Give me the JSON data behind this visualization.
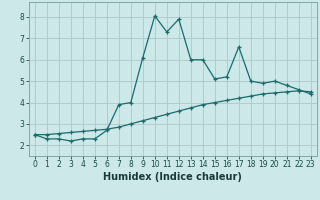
{
  "xlabel": "Humidex (Indice chaleur)",
  "xlim": [
    -0.5,
    23.5
  ],
  "ylim": [
    1.5,
    8.7
  ],
  "yticks": [
    2,
    3,
    4,
    5,
    6,
    7,
    8
  ],
  "xticks": [
    0,
    1,
    2,
    3,
    4,
    5,
    6,
    7,
    8,
    9,
    10,
    11,
    12,
    13,
    14,
    15,
    16,
    17,
    18,
    19,
    20,
    21,
    22,
    23
  ],
  "bg_color": "#cce8e8",
  "line_color": "#1a6b6b",
  "grid_color": "#b0cccc",
  "line1_x": [
    0,
    1,
    2,
    3,
    4,
    5,
    6,
    7,
    8,
    9,
    10,
    11,
    12,
    13,
    14,
    15,
    16,
    17,
    18,
    19,
    20,
    21,
    22,
    23
  ],
  "line1_y": [
    2.5,
    2.3,
    2.3,
    2.2,
    2.3,
    2.3,
    2.7,
    3.9,
    4.0,
    6.1,
    8.05,
    7.3,
    7.9,
    6.0,
    6.0,
    5.1,
    5.2,
    6.6,
    5.0,
    4.9,
    5.0,
    4.8,
    4.6,
    4.4
  ],
  "line2_x": [
    0,
    1,
    2,
    3,
    4,
    5,
    6,
    7,
    8,
    9,
    10,
    11,
    12,
    13,
    14,
    15,
    16,
    17,
    18,
    19,
    20,
    21,
    22,
    23
  ],
  "line2_y": [
    2.5,
    2.5,
    2.55,
    2.6,
    2.65,
    2.7,
    2.75,
    2.85,
    3.0,
    3.15,
    3.3,
    3.45,
    3.6,
    3.75,
    3.9,
    4.0,
    4.1,
    4.2,
    4.3,
    4.4,
    4.45,
    4.5,
    4.55,
    4.5
  ],
  "xlabel_fontsize": 7,
  "tick_fontsize": 5.5
}
